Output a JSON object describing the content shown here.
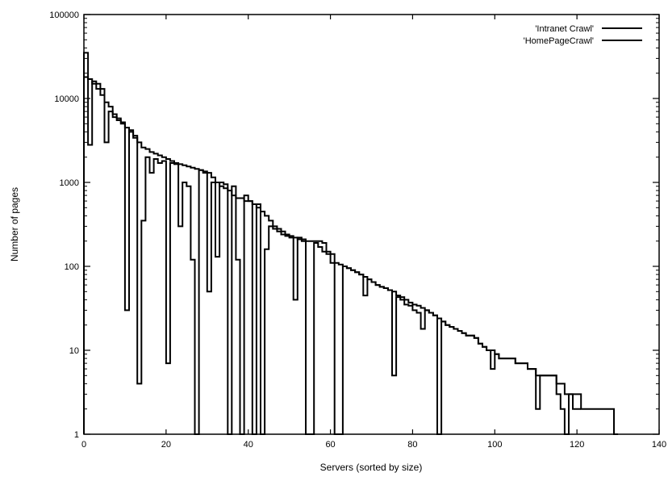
{
  "chart_data": {
    "type": "line",
    "step": true,
    "title": "",
    "xlabel": "Servers (sorted by size)",
    "ylabel": "Number of pages",
    "xlim": [
      0,
      140
    ],
    "ylim": [
      1,
      100000
    ],
    "yscale": "log",
    "grid": false,
    "legend_position": "top-right",
    "x_ticks": [
      {
        "value": 0,
        "label": "0"
      },
      {
        "value": 20,
        "label": "20"
      },
      {
        "value": 40,
        "label": "40"
      },
      {
        "value": 60,
        "label": "60"
      },
      {
        "value": 80,
        "label": "80"
      },
      {
        "value": 100,
        "label": "100"
      },
      {
        "value": 120,
        "label": "120"
      },
      {
        "value": 140,
        "label": "140"
      }
    ],
    "y_ticks": [
      {
        "value": 1,
        "label": "1"
      },
      {
        "value": 10,
        "label": "10"
      },
      {
        "value": 100,
        "label": "100"
      },
      {
        "value": 1000,
        "label": "1000"
      },
      {
        "value": 10000,
        "label": "10000"
      },
      {
        "value": 100000,
        "label": "100000"
      }
    ],
    "series": [
      {
        "name": "'Intranet Crawl'",
        "x": [
          0,
          1,
          2,
          3,
          4,
          5,
          6,
          7,
          8,
          9,
          10,
          11,
          12,
          13,
          14,
          15,
          16,
          17,
          18,
          19,
          20,
          21,
          22,
          23,
          24,
          25,
          26,
          27,
          28,
          29,
          30,
          31,
          32,
          33,
          34,
          35,
          36,
          37,
          38,
          39,
          40,
          41,
          42,
          43,
          44,
          45,
          46,
          47,
          48,
          49,
          50,
          51,
          52,
          53,
          54,
          55,
          56,
          57,
          58,
          59,
          60,
          61,
          62,
          63,
          64,
          65,
          66,
          67,
          68,
          69,
          70,
          71,
          72,
          73,
          74,
          75,
          76,
          77,
          78,
          79,
          80,
          81,
          82,
          83,
          84,
          85,
          86,
          87,
          88,
          89,
          90,
          91,
          92,
          93,
          94,
          95,
          96,
          97,
          98,
          99,
          100,
          101,
          102,
          103,
          104,
          105,
          106,
          107,
          108,
          109,
          110,
          111,
          112,
          113,
          114,
          115,
          116,
          117,
          118,
          119,
          120,
          121,
          122,
          123,
          124,
          125,
          126,
          127,
          128,
          129
        ],
        "values": [
          18000,
          17000,
          15000,
          13000,
          11000,
          9000,
          8000,
          6500,
          5800,
          5200,
          4500,
          4000,
          3400,
          3000,
          2600,
          2500,
          2300,
          2200,
          2100,
          2000,
          1900,
          1800,
          1700,
          1650,
          1600,
          1550,
          1500,
          1450,
          1400,
          1350,
          1300,
          1150,
          1000,
          900,
          850,
          800,
          700,
          650,
          650,
          600,
          600,
          550,
          500,
          450,
          400,
          350,
          300,
          280,
          260,
          240,
          230,
          220,
          210,
          210,
          200,
          200,
          200,
          200,
          190,
          150,
          140,
          110,
          105,
          100,
          95,
          90,
          85,
          80,
          75,
          70,
          65,
          60,
          57,
          55,
          52,
          50,
          45,
          43,
          40,
          37,
          35,
          34,
          32,
          30,
          28,
          26,
          24,
          22,
          20,
          19,
          18,
          17,
          16,
          15,
          15,
          14,
          12,
          11,
          10,
          10,
          9,
          8,
          8,
          8,
          8,
          7,
          7,
          7,
          6,
          6,
          5,
          5,
          5,
          5,
          5,
          4,
          4,
          3,
          3,
          3,
          3,
          2,
          2,
          2,
          2,
          2,
          2,
          2,
          2,
          1
        ]
      },
      {
        "name": "'HomePageCrawl'",
        "x": [
          0,
          1,
          2,
          3,
          4,
          5,
          6,
          7,
          8,
          9,
          10,
          11,
          12,
          13,
          14,
          15,
          16,
          17,
          18,
          19,
          20,
          21,
          22,
          23,
          24,
          25,
          26,
          27,
          28,
          29,
          30,
          31,
          32,
          33,
          34,
          35,
          36,
          37,
          38,
          39,
          40,
          41,
          42,
          43,
          44,
          45,
          46,
          47,
          48,
          49,
          50,
          51,
          52,
          53,
          54,
          55,
          56,
          57,
          58,
          59,
          60,
          61,
          62,
          63,
          64,
          65,
          66,
          67,
          68,
          69,
          70,
          71,
          72,
          73,
          74,
          75,
          76,
          77,
          78,
          79,
          80,
          81,
          82,
          83,
          84,
          85,
          86,
          87,
          88,
          89,
          90,
          91,
          92,
          93,
          94,
          95,
          96,
          97,
          98,
          99,
          100,
          101,
          102,
          103,
          104,
          105,
          106,
          107,
          108,
          109,
          110,
          111,
          112,
          113,
          114,
          115,
          116,
          117,
          118,
          119,
          120
        ],
        "values": [
          35000,
          2800,
          16000,
          15000,
          13000,
          3000,
          7000,
          6000,
          5500,
          5000,
          30,
          4200,
          3600,
          4,
          350,
          2000,
          1300,
          1900,
          1700,
          1800,
          7,
          1700,
          1650,
          300,
          1000,
          900,
          120,
          1,
          1400,
          1300,
          50,
          1000,
          130,
          1000,
          950,
          1,
          900,
          120,
          1,
          700,
          600,
          1,
          550,
          1,
          160,
          300,
          280,
          260,
          240,
          230,
          220,
          40,
          220,
          200,
          1,
          1,
          190,
          170,
          150,
          140,
          110,
          1,
          1,
          100,
          95,
          90,
          85,
          80,
          45,
          70,
          65,
          60,
          57,
          55,
          52,
          5,
          43,
          40,
          35,
          34,
          30,
          28,
          18,
          30,
          28,
          26,
          1,
          22,
          20,
          19,
          18,
          17,
          16,
          15,
          15,
          14,
          12,
          11,
          10,
          6,
          9,
          8,
          8,
          8,
          8,
          7,
          7,
          7,
          6,
          6,
          2,
          5,
          5,
          5,
          5,
          3,
          2,
          1,
          3,
          2,
          2
        ]
      }
    ]
  }
}
